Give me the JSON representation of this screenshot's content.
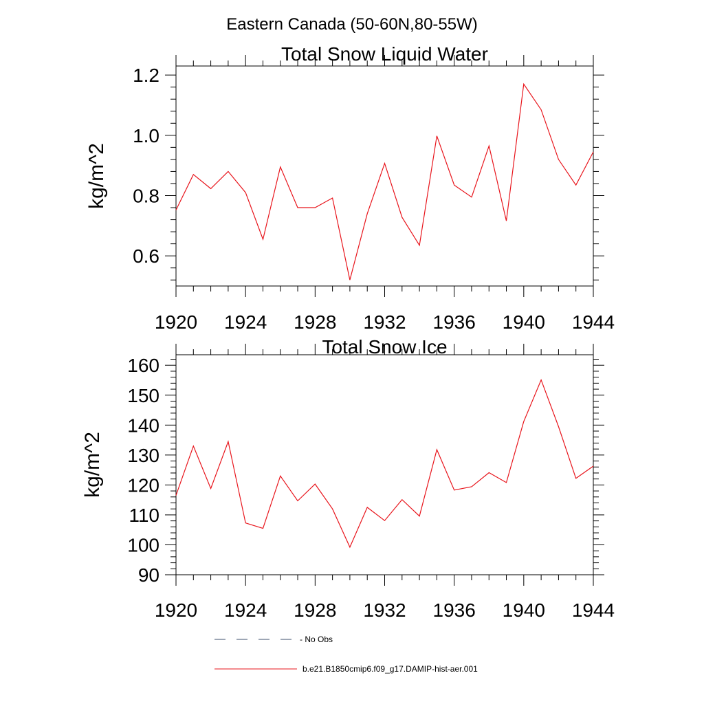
{
  "figure": {
    "title": "Eastern Canada (50-60N,80-55W)"
  },
  "legend": {
    "items": [
      {
        "label": "- No Obs",
        "style": "dashed",
        "color": "#3b4c6b"
      },
      {
        "label": "b.e21.B1850cmip6.f09_g17.DAMIP-hist-aer.001",
        "style": "solid",
        "color": "#e8141b"
      }
    ]
  },
  "chart_data": [
    {
      "type": "line",
      "title": "Total Snow Liquid Water",
      "xlabel": "",
      "ylabel": "kg/m^2",
      "xlim": [
        1920,
        1944
      ],
      "ylim": [
        0.5,
        1.23
      ],
      "xticks": [
        1920,
        1924,
        1928,
        1932,
        1936,
        1940,
        1944
      ],
      "yticks": [
        0.6,
        0.8,
        1.0,
        1.2
      ],
      "ytick_labels": [
        "0.6",
        "0.8",
        "1.0",
        "1.2"
      ],
      "grid": false,
      "x": [
        1920,
        1921,
        1922,
        1923,
        1924,
        1925,
        1926,
        1927,
        1928,
        1929,
        1930,
        1931,
        1932,
        1933,
        1934,
        1935,
        1936,
        1937,
        1938,
        1939,
        1940,
        1941,
        1942,
        1943,
        1944
      ],
      "series": [
        {
          "color": "#e8141b",
          "values": [
            0.752,
            0.87,
            0.823,
            0.88,
            0.81,
            0.655,
            0.895,
            0.76,
            0.76,
            0.792,
            0.52,
            0.74,
            0.907,
            0.728,
            0.635,
            0.998,
            0.835,
            0.795,
            0.965,
            0.716,
            1.17,
            1.085,
            0.92,
            0.835,
            0.945
          ]
        }
      ]
    },
    {
      "type": "line",
      "title": "Total Snow Ice",
      "xlabel": "",
      "ylabel": "kg/m^2",
      "xlim": [
        1920,
        1944
      ],
      "ylim": [
        90,
        163.5
      ],
      "xticks": [
        1920,
        1924,
        1928,
        1932,
        1936,
        1940,
        1944
      ],
      "yticks": [
        90,
        100,
        110,
        120,
        130,
        140,
        150,
        160
      ],
      "ytick_labels": [
        "90",
        "100",
        "110",
        "120",
        "130",
        "140",
        "150",
        "160"
      ],
      "grid": false,
      "x": [
        1920,
        1921,
        1922,
        1923,
        1924,
        1925,
        1926,
        1927,
        1928,
        1929,
        1930,
        1931,
        1932,
        1933,
        1934,
        1935,
        1936,
        1937,
        1938,
        1939,
        1940,
        1941,
        1942,
        1943,
        1944
      ],
      "series": [
        {
          "color": "#e8141b",
          "values": [
            116.5,
            133,
            118.8,
            134.5,
            107.3,
            105.5,
            123,
            114.7,
            120.3,
            112,
            99.2,
            112.5,
            108.1,
            115.1,
            109.6,
            131.8,
            118.3,
            119.4,
            124.1,
            120.8,
            141.2,
            155.1,
            139.5,
            122.2,
            126.3
          ]
        }
      ]
    }
  ]
}
